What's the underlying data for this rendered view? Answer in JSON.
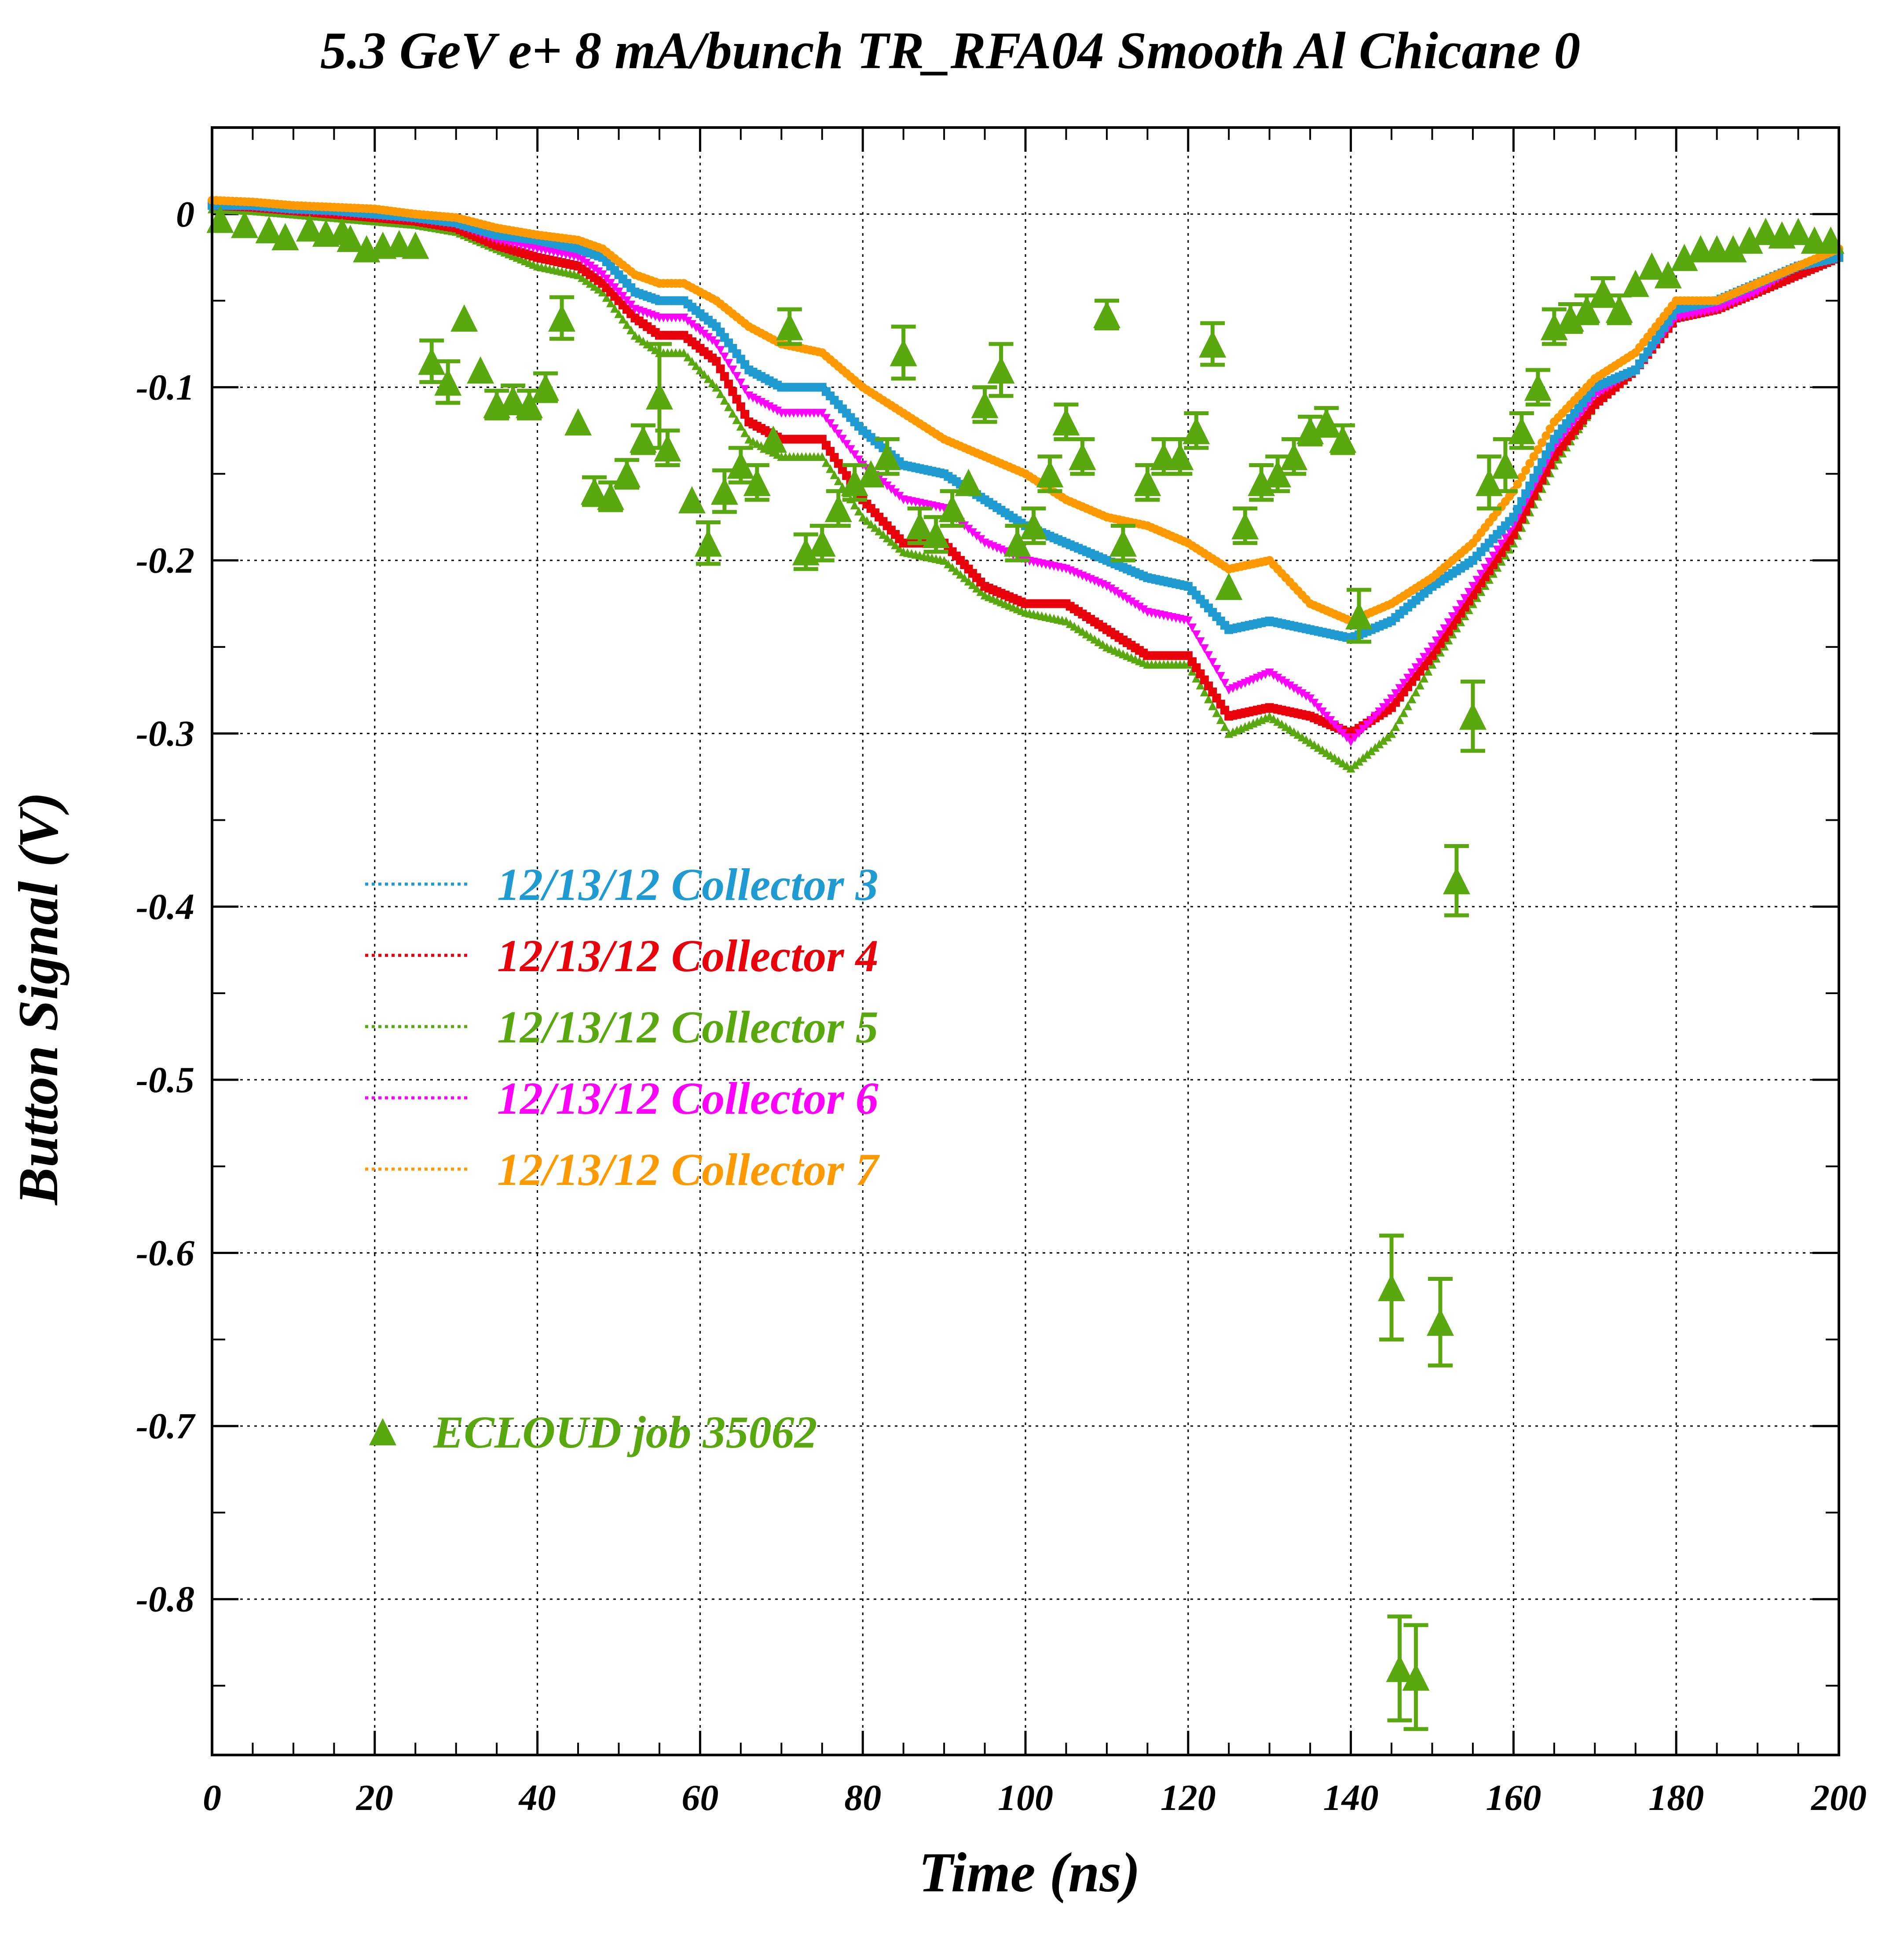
{
  "chart_data": {
    "type": "scatter",
    "title": "5.3 GeV e+ 8 mA/bunch  TR_RFA04 Smooth Al Chicane 0",
    "xlabel": "Time (ns)",
    "ylabel": "Button Signal (V)",
    "xlim": [
      0,
      200
    ],
    "ylim": [
      -0.89,
      0.05
    ],
    "x_ticks": [
      0,
      20,
      40,
      60,
      80,
      100,
      120,
      140,
      160,
      180,
      200
    ],
    "x_tick_labels": [
      "0",
      "20",
      "40",
      "60",
      "80",
      "100",
      "120",
      "140",
      "160",
      "180",
      "200"
    ],
    "y_ticks": [
      0,
      -0.1,
      -0.2,
      -0.3,
      -0.4,
      -0.5,
      -0.6,
      -0.7,
      -0.8
    ],
    "y_tick_labels": [
      "0",
      "-0.1",
      "-0.2",
      "-0.3",
      "-0.4",
      "-0.5",
      "-0.6",
      "-0.7",
      "-0.8"
    ],
    "grid": true,
    "legend_position": "left-middle",
    "series": [
      {
        "name": "12/13/12 Collector 3",
        "color": "#1f9bd1",
        "marker": "square",
        "x": [
          0,
          5,
          10,
          15,
          20,
          25,
          30,
          35,
          40,
          45,
          48,
          52,
          55,
          58,
          62,
          66,
          70,
          75,
          80,
          85,
          90,
          95,
          100,
          105,
          110,
          115,
          120,
          125,
          130,
          135,
          140,
          145,
          150,
          155,
          160,
          165,
          170,
          175,
          180,
          185,
          190,
          195,
          200
        ],
        "y": [
          0.005,
          0.005,
          0.003,
          0.002,
          0.0,
          -0.002,
          -0.005,
          -0.012,
          -0.015,
          -0.02,
          -0.025,
          -0.045,
          -0.05,
          -0.05,
          -0.065,
          -0.09,
          -0.1,
          -0.1,
          -0.125,
          -0.145,
          -0.15,
          -0.165,
          -0.18,
          -0.19,
          -0.2,
          -0.21,
          -0.215,
          -0.24,
          -0.235,
          -0.24,
          -0.245,
          -0.235,
          -0.215,
          -0.2,
          -0.175,
          -0.13,
          -0.1,
          -0.09,
          -0.055,
          -0.05,
          -0.04,
          -0.03,
          -0.025
        ]
      },
      {
        "name": "12/13/12 Collector 4",
        "color": "#e8000b",
        "marker": "square",
        "x": [
          0,
          5,
          10,
          15,
          20,
          25,
          30,
          35,
          40,
          45,
          48,
          52,
          55,
          58,
          62,
          66,
          70,
          75,
          80,
          85,
          90,
          95,
          100,
          105,
          110,
          115,
          120,
          125,
          130,
          135,
          140,
          145,
          150,
          155,
          160,
          165,
          170,
          175,
          180,
          185,
          190,
          195,
          200
        ],
        "y": [
          0.005,
          0.004,
          0.002,
          0.0,
          -0.002,
          -0.004,
          -0.008,
          -0.018,
          -0.025,
          -0.03,
          -0.04,
          -0.06,
          -0.07,
          -0.07,
          -0.085,
          -0.12,
          -0.13,
          -0.13,
          -0.165,
          -0.19,
          -0.19,
          -0.215,
          -0.225,
          -0.225,
          -0.24,
          -0.255,
          -0.255,
          -0.29,
          -0.285,
          -0.29,
          -0.3,
          -0.285,
          -0.255,
          -0.22,
          -0.185,
          -0.14,
          -0.11,
          -0.09,
          -0.06,
          -0.055,
          -0.045,
          -0.035,
          -0.025
        ]
      },
      {
        "name": "12/13/12 Collector 5",
        "color": "#5aa80f",
        "marker": "triangle-up",
        "x": [
          0,
          5,
          10,
          15,
          20,
          25,
          30,
          35,
          40,
          45,
          48,
          52,
          55,
          58,
          62,
          66,
          70,
          75,
          80,
          85,
          90,
          95,
          100,
          105,
          110,
          115,
          120,
          125,
          130,
          135,
          140,
          145,
          150,
          155,
          160,
          165,
          170,
          175,
          180,
          185,
          190,
          195,
          200
        ],
        "y": [
          0.003,
          0.002,
          0.0,
          -0.002,
          -0.004,
          -0.006,
          -0.01,
          -0.02,
          -0.03,
          -0.035,
          -0.045,
          -0.07,
          -0.08,
          -0.08,
          -0.1,
          -0.13,
          -0.14,
          -0.14,
          -0.175,
          -0.195,
          -0.2,
          -0.22,
          -0.23,
          -0.235,
          -0.25,
          -0.26,
          -0.26,
          -0.3,
          -0.29,
          -0.305,
          -0.32,
          -0.3,
          -0.26,
          -0.225,
          -0.19,
          -0.145,
          -0.11,
          -0.09,
          -0.06,
          -0.055,
          -0.045,
          -0.035,
          -0.025
        ]
      },
      {
        "name": "12/13/12 Collector 6",
        "color": "#ff00ff",
        "marker": "triangle-down",
        "x": [
          0,
          5,
          10,
          15,
          20,
          25,
          30,
          35,
          40,
          45,
          48,
          52,
          55,
          58,
          62,
          66,
          70,
          75,
          80,
          85,
          90,
          95,
          100,
          105,
          110,
          115,
          120,
          125,
          130,
          135,
          140,
          145,
          150,
          155,
          160,
          165,
          170,
          175,
          180,
          185,
          190,
          195,
          200
        ],
        "y": [
          0.005,
          0.004,
          0.002,
          0.001,
          -0.001,
          -0.003,
          -0.006,
          -0.015,
          -0.02,
          -0.025,
          -0.035,
          -0.055,
          -0.06,
          -0.06,
          -0.075,
          -0.105,
          -0.115,
          -0.115,
          -0.145,
          -0.165,
          -0.17,
          -0.19,
          -0.2,
          -0.205,
          -0.215,
          -0.23,
          -0.235,
          -0.275,
          -0.265,
          -0.28,
          -0.305,
          -0.28,
          -0.25,
          -0.215,
          -0.18,
          -0.135,
          -0.105,
          -0.09,
          -0.06,
          -0.055,
          -0.045,
          -0.03,
          -0.025
        ]
      },
      {
        "name": "12/13/12 Collector 7",
        "color": "#ff9900",
        "marker": "circle",
        "x": [
          0,
          5,
          10,
          15,
          20,
          25,
          30,
          35,
          40,
          45,
          48,
          52,
          55,
          58,
          62,
          66,
          70,
          75,
          80,
          85,
          90,
          95,
          100,
          105,
          110,
          115,
          120,
          125,
          130,
          135,
          140,
          145,
          150,
          155,
          160,
          165,
          170,
          175,
          180,
          185,
          190,
          195,
          200
        ],
        "y": [
          0.008,
          0.007,
          0.005,
          0.004,
          0.003,
          0.0,
          -0.002,
          -0.008,
          -0.012,
          -0.015,
          -0.02,
          -0.035,
          -0.04,
          -0.04,
          -0.05,
          -0.065,
          -0.075,
          -0.08,
          -0.1,
          -0.115,
          -0.13,
          -0.14,
          -0.15,
          -0.165,
          -0.175,
          -0.18,
          -0.19,
          -0.205,
          -0.2,
          -0.225,
          -0.235,
          -0.225,
          -0.21,
          -0.19,
          -0.16,
          -0.12,
          -0.095,
          -0.08,
          -0.05,
          -0.05,
          -0.04,
          -0.03,
          -0.02
        ]
      },
      {
        "name": "ECLOUD job 35062",
        "color": "#5aa80f",
        "marker": "triangle-up-large",
        "error_bars": true,
        "points": [
          [
            1,
            -0.003,
            0
          ],
          [
            4,
            -0.006,
            0
          ],
          [
            7,
            -0.009,
            0
          ],
          [
            9,
            -0.013,
            0
          ],
          [
            12,
            -0.008,
            0
          ],
          [
            14,
            -0.011,
            0
          ],
          [
            16,
            -0.01,
            0
          ],
          [
            17,
            -0.014,
            0
          ],
          [
            19,
            -0.02,
            0
          ],
          [
            21,
            -0.018,
            0
          ],
          [
            23,
            -0.017,
            0
          ],
          [
            25,
            -0.018,
            0
          ],
          [
            27,
            -0.085,
            0.012
          ],
          [
            29,
            -0.097,
            0.012
          ],
          [
            31,
            -0.06,
            0
          ],
          [
            33,
            -0.09,
            0
          ],
          [
            35,
            -0.11,
            0.008
          ],
          [
            37,
            -0.107,
            0.008
          ],
          [
            39,
            -0.11,
            0.008
          ],
          [
            41,
            -0.1,
            0.008
          ],
          [
            43,
            -0.06,
            0.012
          ],
          [
            45,
            -0.12,
            0
          ],
          [
            47,
            -0.16,
            0.008
          ],
          [
            49,
            -0.163,
            0.008
          ],
          [
            51,
            -0.15,
            0.008
          ],
          [
            53,
            -0.13,
            0.008
          ],
          [
            55,
            -0.105,
            0.03
          ],
          [
            56,
            -0.135,
            0.01
          ],
          [
            59,
            -0.165,
            0
          ],
          [
            61,
            -0.19,
            0.012
          ],
          [
            63,
            -0.16,
            0.012
          ],
          [
            65,
            -0.145,
            0.01
          ],
          [
            67,
            -0.155,
            0.01
          ],
          [
            69,
            -0.13,
            0
          ],
          [
            71,
            -0.065,
            0.01
          ],
          [
            73,
            -0.195,
            0.01
          ],
          [
            75,
            -0.19,
            0.01
          ],
          [
            77,
            -0.17,
            0.01
          ],
          [
            79,
            -0.155,
            0.01
          ],
          [
            81,
            -0.15,
            0
          ],
          [
            83,
            -0.14,
            0.01
          ],
          [
            85,
            -0.08,
            0.015
          ],
          [
            87,
            -0.18,
            0.01
          ],
          [
            89,
            -0.185,
            0.01
          ],
          [
            91,
            -0.17,
            0.01
          ],
          [
            93,
            -0.155,
            0
          ],
          [
            95,
            -0.11,
            0.01
          ],
          [
            97,
            -0.09,
            0.015
          ],
          [
            99,
            -0.19,
            0.01
          ],
          [
            101,
            -0.18,
            0.01
          ],
          [
            103,
            -0.15,
            0.01
          ],
          [
            105,
            -0.12,
            0.01
          ],
          [
            107,
            -0.14,
            0.01
          ],
          [
            110,
            -0.058,
            0.008
          ],
          [
            112,
            -0.19,
            0.01
          ],
          [
            115,
            -0.155,
            0.01
          ],
          [
            117,
            -0.14,
            0.01
          ],
          [
            119,
            -0.14,
            0.01
          ],
          [
            121,
            -0.125,
            0.01
          ],
          [
            123,
            -0.075,
            0.012
          ],
          [
            125,
            -0.215,
            0
          ],
          [
            127,
            -0.18,
            0.01
          ],
          [
            129,
            -0.155,
            0.01
          ],
          [
            131,
            -0.15,
            0.01
          ],
          [
            133,
            -0.14,
            0.01
          ],
          [
            135,
            -0.125,
            0.008
          ],
          [
            137,
            -0.12,
            0.008
          ],
          [
            139,
            -0.13,
            0.008
          ],
          [
            141,
            -0.232,
            0.015
          ],
          [
            145,
            -0.62,
            0.03
          ],
          [
            146,
            -0.84,
            0.03
          ],
          [
            148,
            -0.845,
            0.03
          ],
          [
            151,
            -0.64,
            0.025
          ],
          [
            153,
            -0.385,
            0.02
          ],
          [
            155,
            -0.29,
            0.02
          ],
          [
            157,
            -0.155,
            0.015
          ],
          [
            159,
            -0.145,
            0.015
          ],
          [
            161,
            -0.125,
            0.01
          ],
          [
            163,
            -0.1,
            0.01
          ],
          [
            165,
            -0.065,
            0.01
          ],
          [
            167,
            -0.06,
            0.008
          ],
          [
            169,
            -0.055,
            0.008
          ],
          [
            171,
            -0.045,
            0.008
          ],
          [
            173,
            -0.055,
            0.008
          ],
          [
            175,
            -0.04,
            0
          ],
          [
            177,
            -0.03,
            0
          ],
          [
            179,
            -0.035,
            0
          ],
          [
            181,
            -0.025,
            0
          ],
          [
            183,
            -0.02,
            0
          ],
          [
            185,
            -0.02,
            0
          ],
          [
            187,
            -0.02,
            0
          ],
          [
            189,
            -0.015,
            0
          ],
          [
            191,
            -0.01,
            0
          ],
          [
            193,
            -0.012,
            0
          ],
          [
            195,
            -0.01,
            0
          ],
          [
            197,
            -0.015,
            0
          ],
          [
            199,
            -0.015,
            0
          ]
        ]
      }
    ]
  }
}
